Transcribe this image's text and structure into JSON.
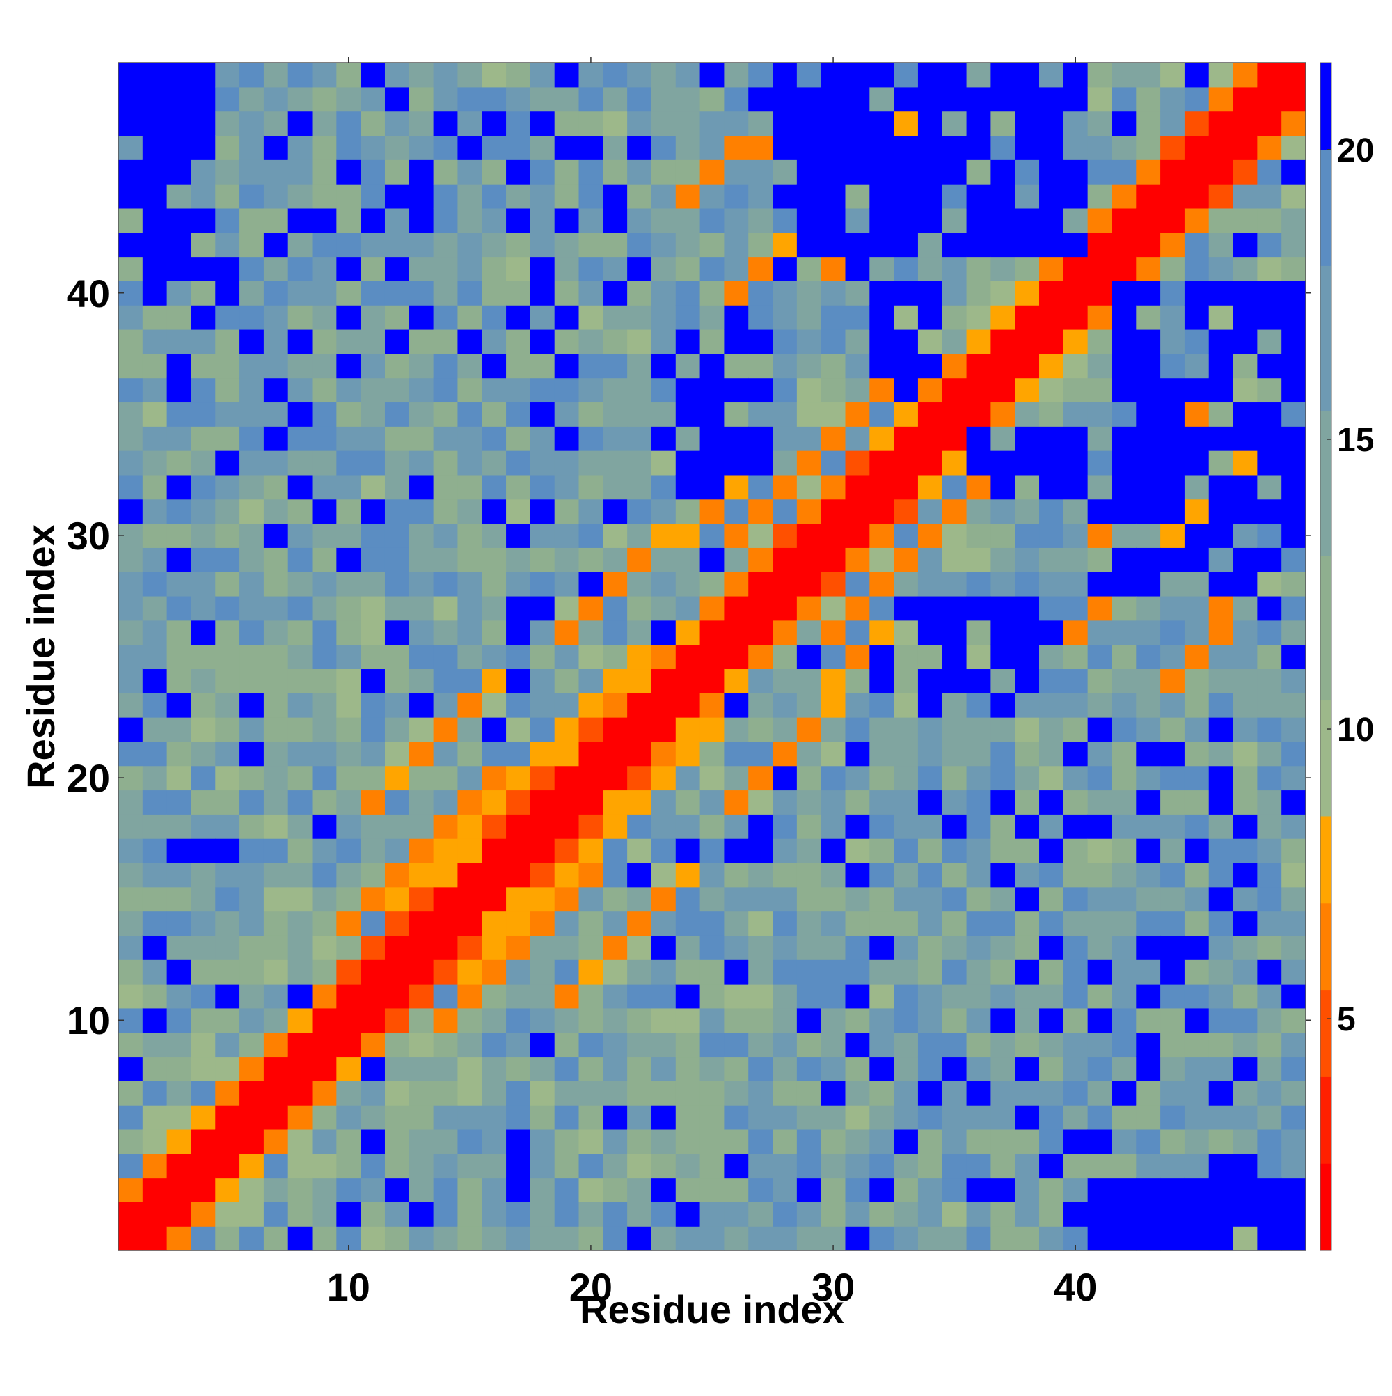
{
  "chart_data": {
    "type": "heatmap",
    "title": "",
    "xlabel": "Residue index",
    "ylabel": "Residue index",
    "n_residues": 49,
    "xlim": [
      0.5,
      49.5
    ],
    "ylim": [
      0.5,
      49.5
    ],
    "x_ticks": [
      10,
      20,
      30,
      40
    ],
    "y_ticks": [
      10,
      20,
      30,
      40
    ],
    "colorbar": {
      "ticks": [
        5,
        10,
        15,
        20
      ],
      "range": [
        1,
        21.5
      ],
      "bands": [
        {
          "max": 2.5,
          "color": "#ff0000"
        },
        {
          "max": 4.0,
          "color": "#ff2000"
        },
        {
          "max": 5.5,
          "color": "#ff5000"
        },
        {
          "max": 7.0,
          "color": "#ff8000"
        },
        {
          "max": 8.5,
          "color": "#ffa500"
        },
        {
          "max": 10.5,
          "color": "#9db88a"
        },
        {
          "max": 13.0,
          "color": "#8faf8f"
        },
        {
          "max": 15.5,
          "color": "#80a5a0"
        },
        {
          "max": 18.0,
          "color": "#6e9ab3"
        },
        {
          "max": 20.0,
          "color": "#5b8dc2"
        },
        {
          "max": 99,
          "color": "#0000ff"
        }
      ]
    },
    "matrix_description": "Symmetric pairwise residue distance map (values approx. in colorbar units); diagonal ~1, near-diagonal contacts 3-8, background 10-20, far blocks >20.",
    "contact_features": {
      "helix_bands": [
        {
          "i_range": [
            10,
            16
          ],
          "offset": 4,
          "value": 6.5
        },
        {
          "i_range": [
            12,
            22
          ],
          "offset": 3,
          "value": 7.5
        },
        {
          "i_range": [
            26,
            33
          ],
          "offset": 4,
          "value": 7.0
        }
      ],
      "off_diagonal_stripes": [
        {
          "start": [
            11,
            19
          ],
          "end": [
            16,
            24
          ],
          "value": 7.0
        },
        {
          "start": [
            19,
            26
          ],
          "end": [
            27,
            33
          ],
          "value": 7.0
        },
        {
          "start": [
            40,
            26
          ],
          "end": [
            48,
            34
          ],
          "value": 7.0
        },
        {
          "start": [
            24,
            44
          ],
          "end": [
            29,
            48
          ],
          "value": 6.5
        },
        {
          "start": [
            30,
            41
          ],
          "end": [
            35,
            45
          ],
          "value": 7.0
        }
      ],
      "far_blocks": [
        {
          "i": [
            41,
            49
          ],
          "j": [
            1,
            4
          ],
          "value": 21
        },
        {
          "i": [
            1,
            4
          ],
          "j": [
            41,
            49
          ],
          "value": 21
        },
        {
          "i": [
            42,
            49
          ],
          "j": [
            28,
            40
          ],
          "value": 21
        },
        {
          "i": [
            28,
            40
          ],
          "j": [
            42,
            49
          ],
          "value": 21
        },
        {
          "i": [
            24,
            27
          ],
          "j": [
            32,
            38
          ],
          "value": 21
        },
        {
          "i": [
            32,
            38
          ],
          "j": [
            24,
            27
          ],
          "value": 21
        },
        {
          "i": [
            32,
            34
          ],
          "j": [
            36,
            40
          ],
          "value": 21
        },
        {
          "i": [
            36,
            40
          ],
          "j": [
            32,
            34
          ],
          "value": 21
        },
        {
          "i": [
            44,
            48
          ],
          "j": [
            34,
            40
          ],
          "value": 21
        },
        {
          "i": [
            34,
            40
          ],
          "j": [
            44,
            48
          ],
          "value": 21
        }
      ]
    }
  }
}
